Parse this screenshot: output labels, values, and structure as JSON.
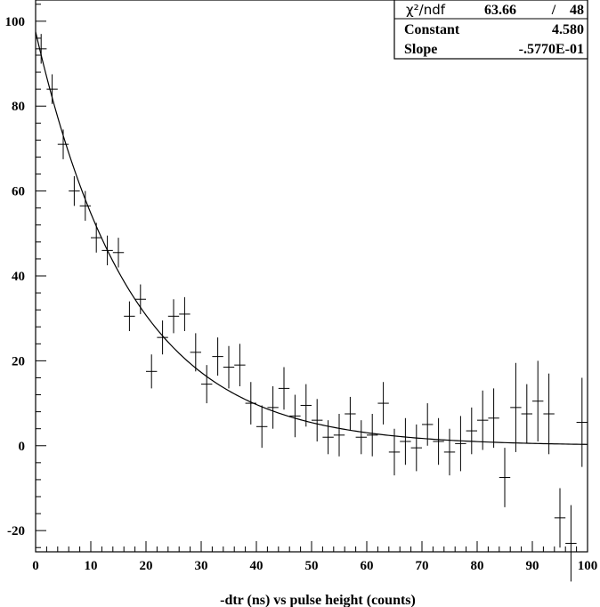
{
  "chart_data": {
    "type": "scatter",
    "title": "",
    "xlabel": "-dtr (ns) vs pulse height (counts)",
    "ylabel": "",
    "xlim": [
      0,
      100
    ],
    "ylim": [
      -25,
      105
    ],
    "x_ticks": [
      0,
      10,
      20,
      30,
      40,
      50,
      60,
      70,
      80,
      90,
      100
    ],
    "x_tick_labels": [
      "0",
      "10",
      "20",
      "30",
      "40",
      "50",
      "60",
      "70",
      "80",
      "90",
      "100"
    ],
    "y_ticks": [
      -20,
      0,
      20,
      40,
      60,
      80,
      100
    ],
    "y_tick_labels": [
      "-20",
      "0",
      "20",
      "40",
      "60",
      "80",
      "100"
    ],
    "x_bin_half_width": 1,
    "points": [
      {
        "x": 1,
        "y": 93.5,
        "err": 3.5
      },
      {
        "x": 3,
        "y": 84,
        "err": 3.5
      },
      {
        "x": 5,
        "y": 71,
        "err": 3.5
      },
      {
        "x": 7,
        "y": 60,
        "err": 3.5
      },
      {
        "x": 9,
        "y": 56.5,
        "err": 3.5
      },
      {
        "x": 11,
        "y": 49,
        "err": 3.5
      },
      {
        "x": 13,
        "y": 46,
        "err": 3.5
      },
      {
        "x": 15,
        "y": 45.5,
        "err": 3.5
      },
      {
        "x": 17,
        "y": 30.5,
        "err": 3.5
      },
      {
        "x": 19,
        "y": 34.5,
        "err": 3.5
      },
      {
        "x": 21,
        "y": 17.5,
        "err": 4
      },
      {
        "x": 23,
        "y": 25.5,
        "err": 4
      },
      {
        "x": 25,
        "y": 30.5,
        "err": 4
      },
      {
        "x": 27,
        "y": 31,
        "err": 4
      },
      {
        "x": 29,
        "y": 22,
        "err": 4.5
      },
      {
        "x": 31,
        "y": 14.5,
        "err": 4.5
      },
      {
        "x": 33,
        "y": 21,
        "err": 4.5
      },
      {
        "x": 35,
        "y": 18.5,
        "err": 5
      },
      {
        "x": 37,
        "y": 19,
        "err": 5
      },
      {
        "x": 39,
        "y": 10,
        "err": 5
      },
      {
        "x": 41,
        "y": 4.5,
        "err": 5
      },
      {
        "x": 43,
        "y": 9,
        "err": 5
      },
      {
        "x": 45,
        "y": 13.5,
        "err": 5
      },
      {
        "x": 47,
        "y": 7,
        "err": 5
      },
      {
        "x": 49,
        "y": 9.5,
        "err": 5
      },
      {
        "x": 51,
        "y": 6,
        "err": 5
      },
      {
        "x": 53,
        "y": 2,
        "err": 4
      },
      {
        "x": 55,
        "y": 2.5,
        "err": 5
      },
      {
        "x": 57,
        "y": 7.5,
        "err": 4
      },
      {
        "x": 59,
        "y": 2,
        "err": 4
      },
      {
        "x": 61,
        "y": 2.5,
        "err": 5
      },
      {
        "x": 63,
        "y": 10,
        "err": 5
      },
      {
        "x": 65,
        "y": -1.5,
        "err": 5.5
      },
      {
        "x": 67,
        "y": 1,
        "err": 5.5
      },
      {
        "x": 69,
        "y": -0.5,
        "err": 5.5
      },
      {
        "x": 71,
        "y": 5,
        "err": 5
      },
      {
        "x": 73,
        "y": 1,
        "err": 5.5
      },
      {
        "x": 75,
        "y": -1.5,
        "err": 5.5
      },
      {
        "x": 77,
        "y": 0.5,
        "err": 6.5
      },
      {
        "x": 79,
        "y": 3.5,
        "err": 5.5
      },
      {
        "x": 81,
        "y": 6,
        "err": 7
      },
      {
        "x": 83,
        "y": 6.5,
        "err": 7
      },
      {
        "x": 85,
        "y": -7.5,
        "err": 7
      },
      {
        "x": 87,
        "y": 9,
        "err": 10.5
      },
      {
        "x": 89,
        "y": 7.5,
        "err": 7
      },
      {
        "x": 91,
        "y": 10.5,
        "err": 9.5
      },
      {
        "x": 93,
        "y": 7.5,
        "err": 9.5
      },
      {
        "x": 95,
        "y": -17,
        "err": 7
      },
      {
        "x": 97,
        "y": -23,
        "err": 9
      },
      {
        "x": 99,
        "y": 5.5,
        "err": 10.5
      }
    ],
    "fit": {
      "type": "exponential",
      "constant": 4.58,
      "slope": -0.0577
    },
    "stats_box": {
      "chi2_label": "χ²/ndf",
      "chi2_value": "63.66",
      "separator": "/",
      "ndf_value": "48",
      "constant_label": "Constant",
      "constant_value": "4.580",
      "slope_label": "Slope",
      "slope_value": "-.5770E-01"
    },
    "grid": false,
    "legend": "none"
  }
}
